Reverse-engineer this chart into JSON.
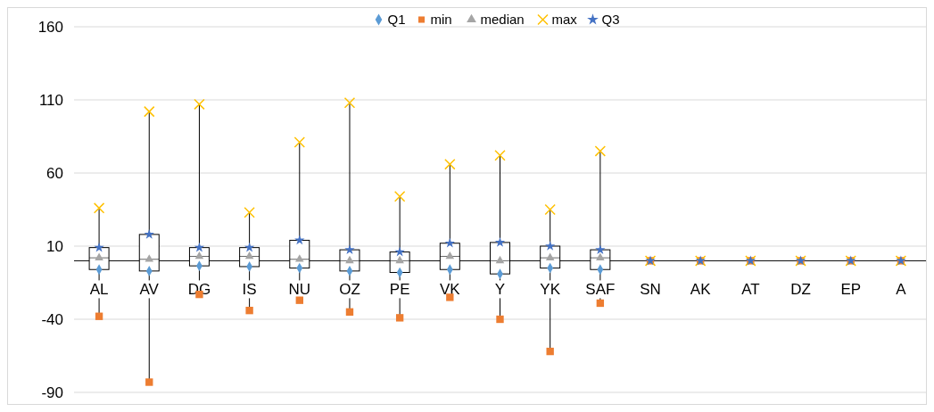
{
  "chart_data": {
    "type": "box",
    "categories": [
      "AL",
      "AV",
      "DG",
      "IS",
      "NU",
      "OZ",
      "PE",
      "VK",
      "Y",
      "YK",
      "SAF",
      "SN",
      "AK",
      "AT",
      "DZ",
      "EP",
      "A"
    ],
    "boxes": [
      {
        "low": -38,
        "q1": -6,
        "median": 2,
        "q3": 9,
        "high": 36
      },
      {
        "low": -83,
        "q1": -7,
        "median": 1,
        "q3": 18,
        "high": 102
      },
      {
        "low": -23,
        "q1": -3.5,
        "median": 3,
        "q3": 9,
        "high": 107
      },
      {
        "low": -34,
        "q1": -4,
        "median": 3,
        "q3": 9,
        "high": 33
      },
      {
        "low": -27,
        "q1": -5,
        "median": 1,
        "q3": 14,
        "high": 81
      },
      {
        "low": -35,
        "q1": -7,
        "median": 0,
        "q3": 7.5,
        "high": 108
      },
      {
        "low": -39,
        "q1": -8,
        "median": 0,
        "q3": 6,
        "high": 44
      },
      {
        "low": -25,
        "q1": -6,
        "median": 3,
        "q3": 12,
        "high": 66
      },
      {
        "low": -40,
        "q1": -9,
        "median": 0,
        "q3": 12.5,
        "high": 72
      },
      {
        "low": -62,
        "q1": -5,
        "median": 2,
        "q3": 10,
        "high": 35
      },
      {
        "low": -29,
        "q1": -6,
        "median": 2,
        "q3": 7.5,
        "high": 75
      },
      null,
      null,
      null,
      null,
      null,
      null
    ],
    "series": [
      {
        "name": "Q1",
        "type": "scatter",
        "marker": "diamond",
        "color": "#5b9bd5",
        "values": [
          -6,
          -7,
          -3.5,
          -4,
          -5,
          -7,
          -8,
          -6,
          -9,
          -5,
          -6,
          null,
          null,
          null,
          null,
          null,
          null
        ]
      },
      {
        "name": "min",
        "type": "scatter",
        "marker": "square",
        "color": "#ed7d31",
        "values": [
          -38,
          -83,
          -23,
          -34,
          -27,
          -35,
          -39,
          -25,
          -40,
          -62,
          -29,
          0,
          0,
          0,
          0,
          0,
          0
        ]
      },
      {
        "name": "median",
        "type": "scatter",
        "marker": "triangle",
        "color": "#a5a5a5",
        "values": [
          2,
          1,
          3,
          3,
          1,
          0,
          0,
          3,
          0,
          2,
          2,
          null,
          null,
          null,
          null,
          null,
          null
        ]
      },
      {
        "name": "max",
        "type": "scatter",
        "marker": "cross",
        "color": "#ffc000",
        "values": [
          36,
          102,
          107,
          33,
          81,
          108,
          44,
          66,
          72,
          35,
          75,
          0,
          0,
          0,
          0,
          0,
          0
        ]
      },
      {
        "name": "Q3",
        "type": "scatter",
        "marker": "star",
        "color": "#4472c4",
        "values": [
          9,
          18,
          9,
          9,
          14,
          7.5,
          6,
          12,
          12.5,
          10,
          7.5,
          0,
          0,
          0,
          0,
          0,
          0
        ]
      }
    ],
    "ylim": [
      -90,
      160
    ],
    "yticks": [
      -90,
      -40,
      10,
      60,
      110,
      160
    ],
    "grid": "y",
    "legend": "top"
  }
}
